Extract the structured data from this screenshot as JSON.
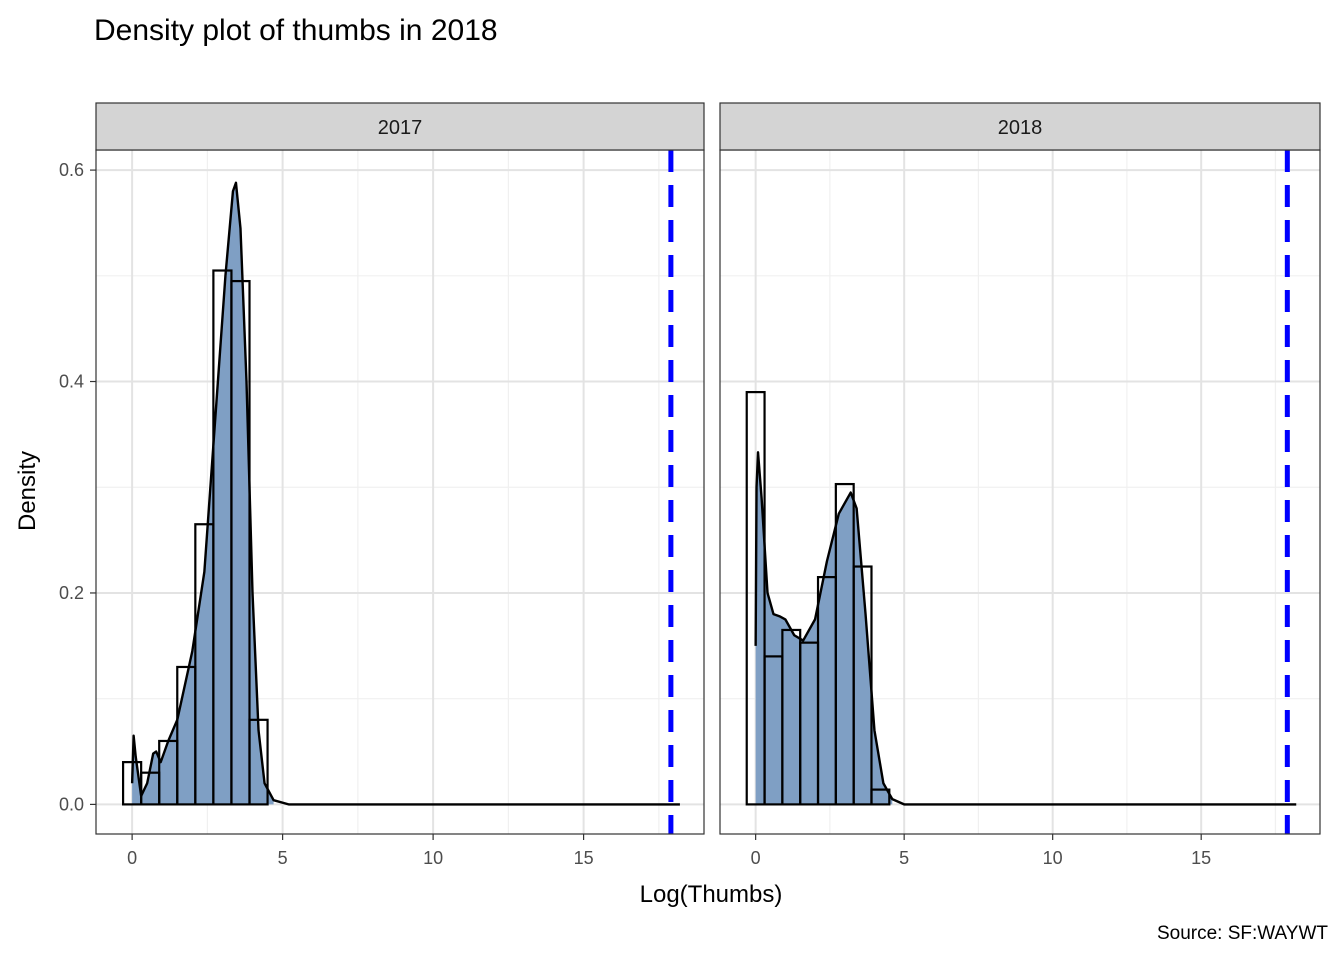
{
  "chart_data": {
    "type": "histogram-density-facet",
    "title": "Density plot of thumbs in 2018",
    "xlabel": "Log(Thumbs)",
    "ylabel": "Density",
    "caption": "Source: SF:WAYWT",
    "xlim": [
      -1.2,
      19.0
    ],
    "ylim": [
      -0.028,
      0.619
    ],
    "x_ticks": [
      0,
      5,
      10,
      15
    ],
    "x_tick_labels": [
      "0",
      "5",
      "10",
      "15"
    ],
    "y_ticks": [
      0.0,
      0.2,
      0.4,
      0.6
    ],
    "y_tick_labels": [
      "0.0",
      "0.2",
      "0.4",
      "0.6"
    ],
    "grid": true,
    "vline_x": 17.9,
    "fill_color": "#7f9fc4",
    "line_color": "#000000",
    "vline_color": "#0000ff",
    "strip_fill": "#d4d4d4",
    "bin_width": 0.6,
    "panels": [
      {
        "label": "2017",
        "bins": [
          {
            "x0": -0.3,
            "x1": 0.3,
            "density": 0.04
          },
          {
            "x0": 0.3,
            "x1": 0.9,
            "density": 0.03
          },
          {
            "x0": 0.9,
            "x1": 1.5,
            "density": 0.06
          },
          {
            "x0": 1.5,
            "x1": 2.1,
            "density": 0.13
          },
          {
            "x0": 2.1,
            "x1": 2.7,
            "density": 0.265
          },
          {
            "x0": 2.7,
            "x1": 3.3,
            "density": 0.505
          },
          {
            "x0": 3.3,
            "x1": 3.9,
            "density": 0.495
          },
          {
            "x0": 3.9,
            "x1": 4.5,
            "density": 0.08
          }
        ],
        "density_curve": [
          [
            0.0,
            0.02
          ],
          [
            0.05,
            0.065
          ],
          [
            0.12,
            0.045
          ],
          [
            0.3,
            0.008
          ],
          [
            0.5,
            0.02
          ],
          [
            0.7,
            0.048
          ],
          [
            0.8,
            0.05
          ],
          [
            0.95,
            0.04
          ],
          [
            1.2,
            0.06
          ],
          [
            1.5,
            0.08
          ],
          [
            2.0,
            0.145
          ],
          [
            2.4,
            0.22
          ],
          [
            2.8,
            0.38
          ],
          [
            3.1,
            0.5
          ],
          [
            3.35,
            0.58
          ],
          [
            3.45,
            0.588
          ],
          [
            3.6,
            0.545
          ],
          [
            3.8,
            0.4
          ],
          [
            4.0,
            0.2
          ],
          [
            4.2,
            0.07
          ],
          [
            4.4,
            0.02
          ],
          [
            4.7,
            0.004
          ],
          [
            5.2,
            0.0
          ],
          [
            10.0,
            0.0
          ],
          [
            18.2,
            0.0
          ]
        ],
        "area_end": 4.7
      },
      {
        "label": "2018",
        "bins": [
          {
            "x0": -0.3,
            "x1": 0.3,
            "density": 0.39
          },
          {
            "x0": 0.3,
            "x1": 0.9,
            "density": 0.14
          },
          {
            "x0": 0.9,
            "x1": 1.5,
            "density": 0.165
          },
          {
            "x0": 1.5,
            "x1": 2.1,
            "density": 0.153
          },
          {
            "x0": 2.1,
            "x1": 2.7,
            "density": 0.215
          },
          {
            "x0": 2.7,
            "x1": 3.3,
            "density": 0.303
          },
          {
            "x0": 3.3,
            "x1": 3.9,
            "density": 0.225
          },
          {
            "x0": 3.9,
            "x1": 4.5,
            "density": 0.014
          }
        ],
        "density_curve": [
          [
            0.0,
            0.15
          ],
          [
            0.03,
            0.3
          ],
          [
            0.08,
            0.333
          ],
          [
            0.2,
            0.29
          ],
          [
            0.4,
            0.2
          ],
          [
            0.6,
            0.18
          ],
          [
            0.8,
            0.178
          ],
          [
            1.0,
            0.175
          ],
          [
            1.3,
            0.16
          ],
          [
            1.6,
            0.155
          ],
          [
            2.0,
            0.175
          ],
          [
            2.4,
            0.23
          ],
          [
            2.8,
            0.275
          ],
          [
            3.2,
            0.295
          ],
          [
            3.4,
            0.28
          ],
          [
            3.7,
            0.18
          ],
          [
            4.0,
            0.07
          ],
          [
            4.3,
            0.02
          ],
          [
            4.6,
            0.005
          ],
          [
            5.0,
            0.0
          ],
          [
            10.0,
            0.0
          ],
          [
            18.2,
            0.0
          ]
        ],
        "area_end": 4.6
      }
    ]
  }
}
